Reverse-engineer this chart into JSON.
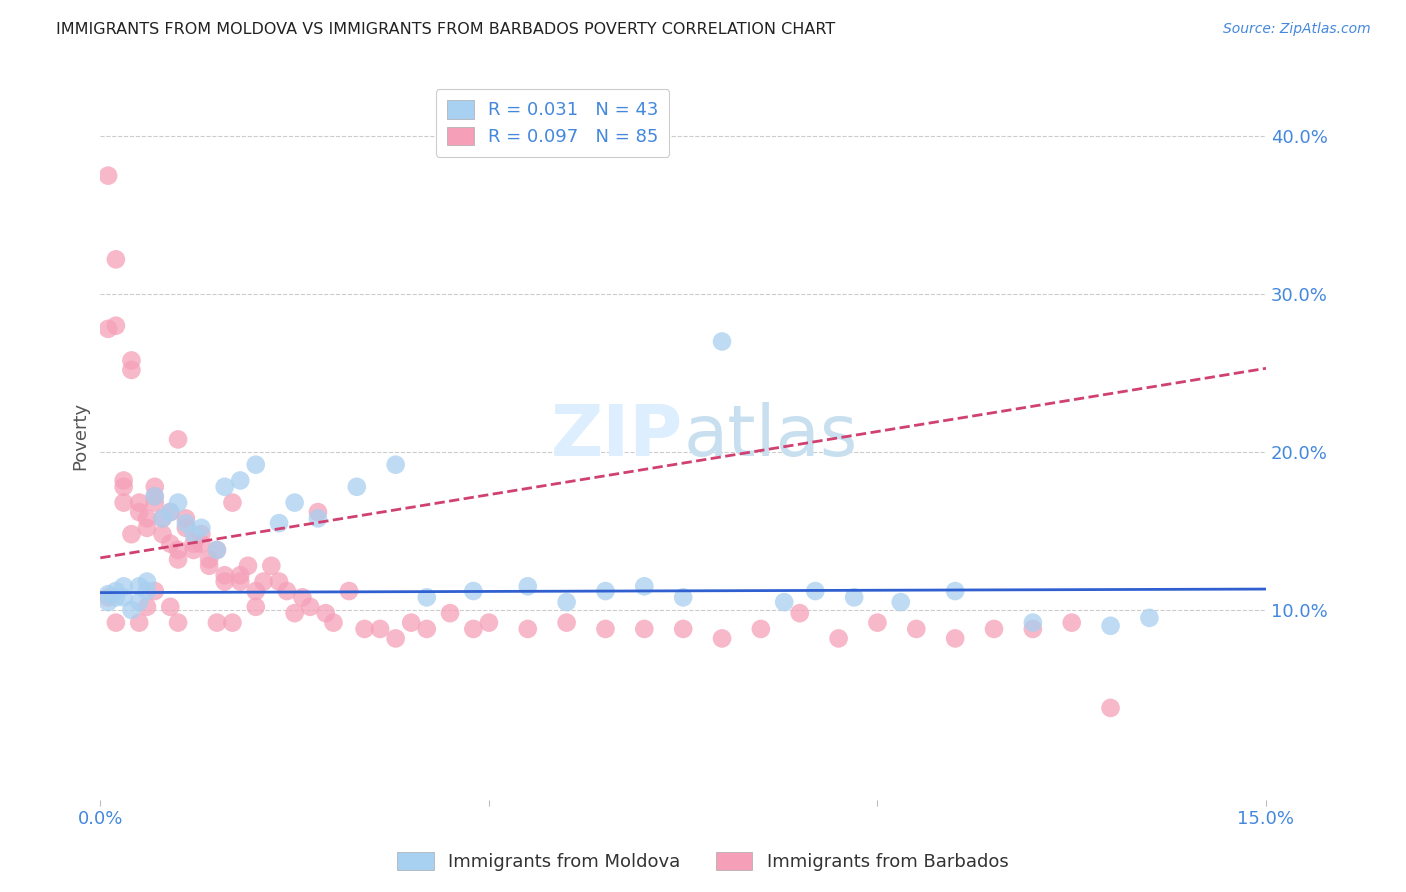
{
  "title": "IMMIGRANTS FROM MOLDOVA VS IMMIGRANTS FROM BARBADOS POVERTY CORRELATION CHART",
  "source": "Source: ZipAtlas.com",
  "ylabel": "Poverty",
  "ytick_labels": [
    "10.0%",
    "20.0%",
    "30.0%",
    "40.0%"
  ],
  "ytick_values": [
    0.1,
    0.2,
    0.3,
    0.4
  ],
  "xlim": [
    0.0,
    0.15
  ],
  "ylim": [
    -0.02,
    0.44
  ],
  "legend_r1": "R = 0.031",
  "legend_n1": "N = 43",
  "legend_r2": "R = 0.097",
  "legend_n2": "N = 85",
  "color_moldova": "#a8d0f0",
  "color_barbados": "#f5a0b8",
  "line_color_moldova": "#3060d0",
  "line_color_barbados": "#d04070",
  "background_color": "#ffffff",
  "title_fontsize": 11.5,
  "axis_label_color": "#4488dd",
  "watermark_color": "#ddeeff",
  "moldova_x": [
    0.001,
    0.001,
    0.002,
    0.002,
    0.003,
    0.003,
    0.004,
    0.005,
    0.005,
    0.006,
    0.006,
    0.007,
    0.008,
    0.009,
    0.01,
    0.011,
    0.012,
    0.013,
    0.015,
    0.016,
    0.018,
    0.02,
    0.023,
    0.025,
    0.028,
    0.033,
    0.038,
    0.042,
    0.048,
    0.055,
    0.06,
    0.065,
    0.07,
    0.075,
    0.08,
    0.088,
    0.092,
    0.097,
    0.103,
    0.11,
    0.12,
    0.13,
    0.135
  ],
  "moldova_y": [
    0.11,
    0.105,
    0.112,
    0.108,
    0.115,
    0.108,
    0.1,
    0.115,
    0.105,
    0.112,
    0.118,
    0.172,
    0.158,
    0.162,
    0.168,
    0.155,
    0.148,
    0.152,
    0.138,
    0.178,
    0.182,
    0.192,
    0.155,
    0.168,
    0.158,
    0.178,
    0.192,
    0.108,
    0.112,
    0.115,
    0.105,
    0.112,
    0.115,
    0.108,
    0.27,
    0.105,
    0.112,
    0.108,
    0.105,
    0.112,
    0.092,
    0.09,
    0.095
  ],
  "barbados_x": [
    0.001,
    0.001,
    0.001,
    0.002,
    0.002,
    0.002,
    0.003,
    0.003,
    0.003,
    0.004,
    0.004,
    0.004,
    0.005,
    0.005,
    0.005,
    0.006,
    0.006,
    0.006,
    0.007,
    0.007,
    0.007,
    0.008,
    0.008,
    0.009,
    0.009,
    0.009,
    0.01,
    0.01,
    0.01,
    0.011,
    0.011,
    0.012,
    0.012,
    0.013,
    0.013,
    0.014,
    0.014,
    0.015,
    0.015,
    0.016,
    0.016,
    0.017,
    0.017,
    0.018,
    0.018,
    0.019,
    0.02,
    0.02,
    0.021,
    0.022,
    0.023,
    0.024,
    0.025,
    0.026,
    0.027,
    0.028,
    0.029,
    0.03,
    0.032,
    0.034,
    0.036,
    0.038,
    0.04,
    0.042,
    0.045,
    0.048,
    0.05,
    0.055,
    0.06,
    0.065,
    0.07,
    0.075,
    0.08,
    0.085,
    0.09,
    0.095,
    0.1,
    0.105,
    0.11,
    0.115,
    0.12,
    0.125,
    0.13,
    0.007,
    0.01
  ],
  "barbados_y": [
    0.375,
    0.108,
    0.278,
    0.322,
    0.28,
    0.092,
    0.182,
    0.178,
    0.168,
    0.258,
    0.252,
    0.148,
    0.168,
    0.162,
    0.092,
    0.158,
    0.152,
    0.102,
    0.172,
    0.168,
    0.112,
    0.158,
    0.148,
    0.162,
    0.142,
    0.102,
    0.138,
    0.132,
    0.092,
    0.158,
    0.152,
    0.142,
    0.138,
    0.148,
    0.142,
    0.132,
    0.128,
    0.138,
    0.092,
    0.122,
    0.118,
    0.168,
    0.092,
    0.122,
    0.118,
    0.128,
    0.112,
    0.102,
    0.118,
    0.128,
    0.118,
    0.112,
    0.098,
    0.108,
    0.102,
    0.162,
    0.098,
    0.092,
    0.112,
    0.088,
    0.088,
    0.082,
    0.092,
    0.088,
    0.098,
    0.088,
    0.092,
    0.088,
    0.092,
    0.088,
    0.088,
    0.088,
    0.082,
    0.088,
    0.098,
    0.082,
    0.092,
    0.088,
    0.082,
    0.088,
    0.088,
    0.092,
    0.038,
    0.178,
    0.208
  ]
}
